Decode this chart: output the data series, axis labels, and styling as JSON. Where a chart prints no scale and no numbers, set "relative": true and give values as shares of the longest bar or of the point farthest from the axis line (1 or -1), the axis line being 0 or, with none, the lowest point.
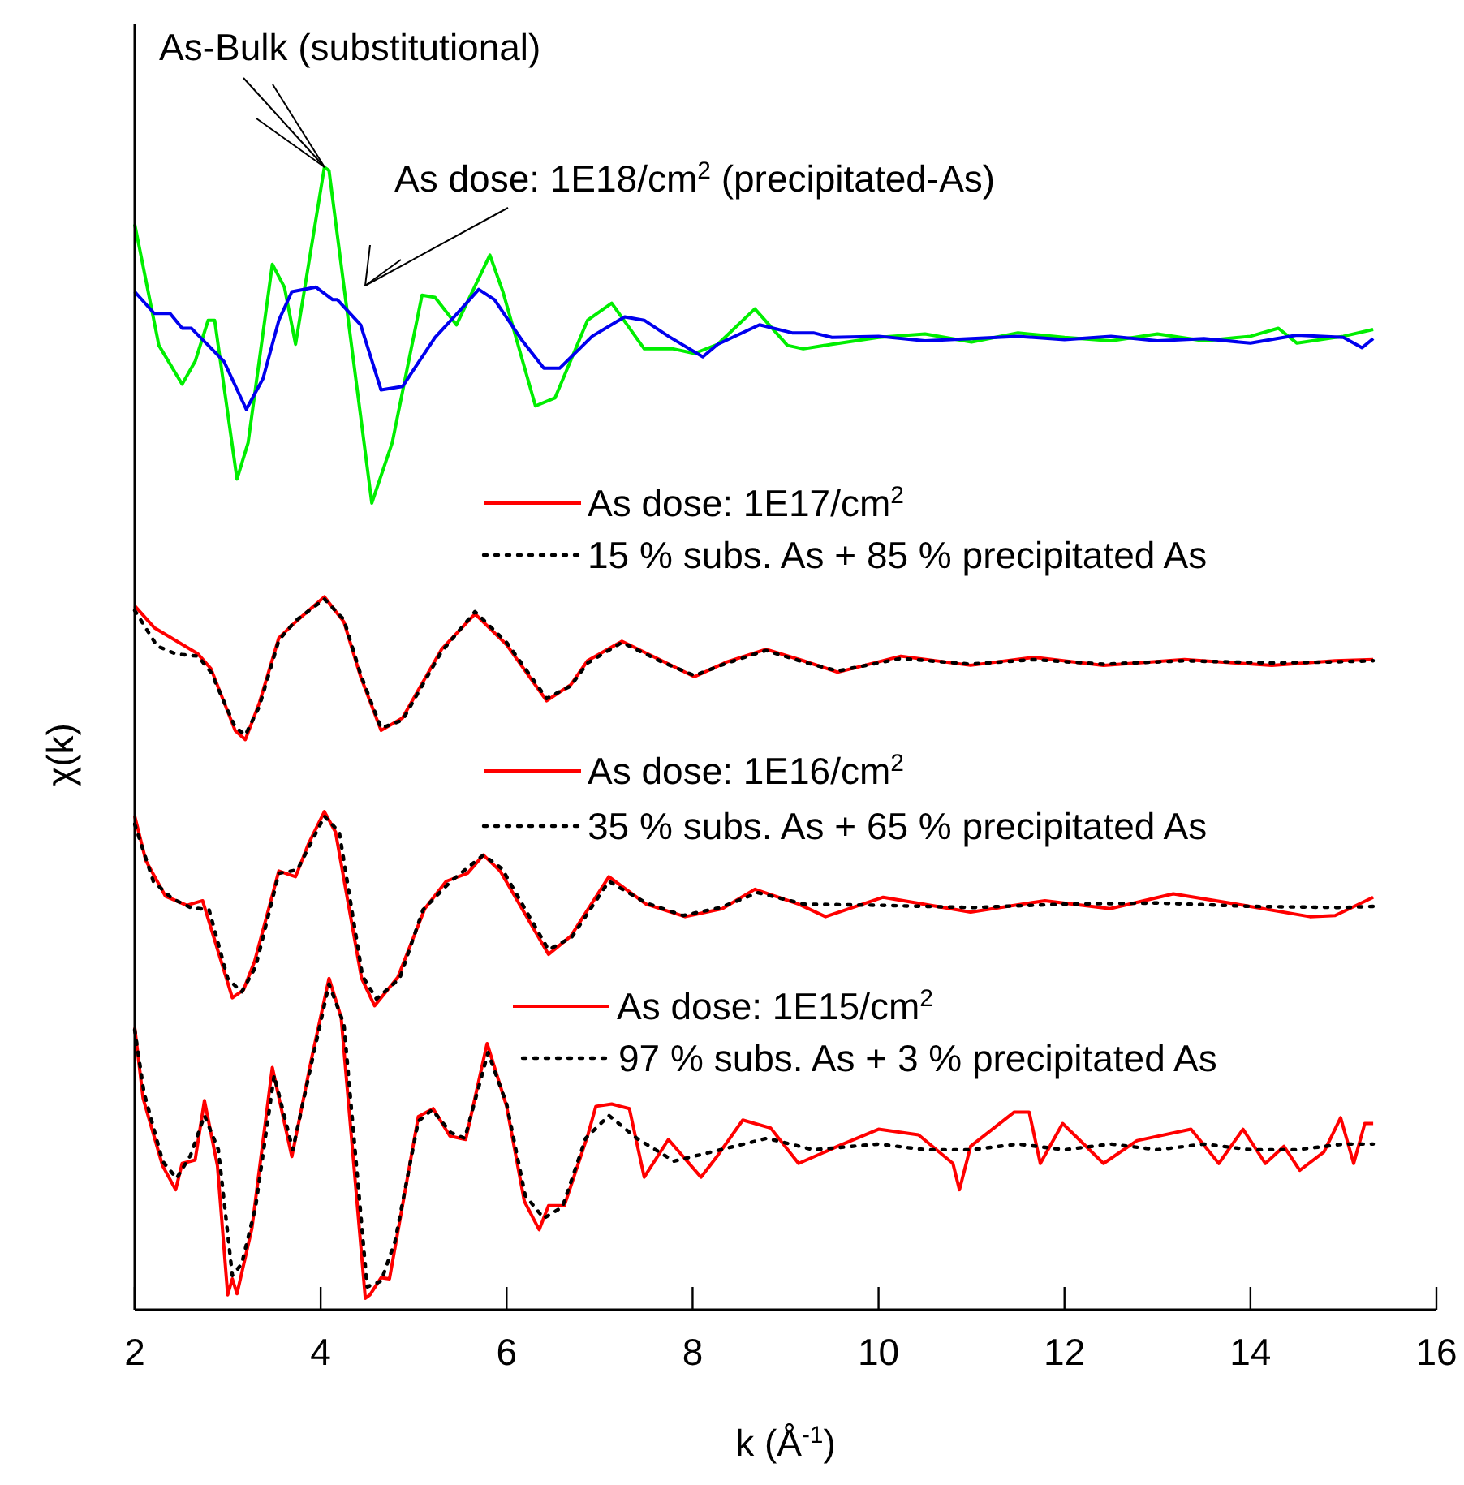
{
  "chart_data": {
    "type": "line",
    "relative": true,
    "xlabel": "k (Å$^{-1}$)",
    "ylabel": "χ(k)",
    "xlim": [
      2,
      16
    ],
    "xticks": [
      2,
      4,
      6,
      8,
      10,
      12,
      14,
      16
    ],
    "legend": "right",
    "grid": false,
    "marker": "none",
    "series": [
      {
        "name": "As-Bulk (substitutional)",
        "color": "#00ee00",
        "line_style": "solid",
        "x": [
          2.0,
          2.26,
          2.51,
          2.65,
          2.79,
          2.86,
          3.1,
          3.22,
          3.48,
          3.61,
          3.73,
          4.04,
          4.09,
          4.55,
          4.77,
          5.09,
          5.23,
          5.46,
          5.82,
          5.96,
          6.31,
          6.52,
          6.87,
          7.13,
          7.48,
          7.79,
          8.02,
          8.27,
          8.67,
          9.02,
          9.19,
          9.5,
          10,
          10.5,
          11,
          11.5,
          12,
          12.5,
          13,
          13.5,
          14,
          14.3,
          14.5,
          15,
          15.32
        ],
        "values": [
          0.95,
          0.844,
          0.81,
          0.83,
          0.866,
          0.866,
          0.727,
          0.759,
          0.915,
          0.895,
          0.845,
          1.0,
          0.997,
          0.706,
          0.759,
          0.888,
          0.886,
          0.862,
          0.923,
          0.891,
          0.791,
          0.798,
          0.866,
          0.881,
          0.841,
          0.841,
          0.837,
          0.845,
          0.876,
          0.844,
          0.841,
          0.845,
          0.851,
          0.854,
          0.847,
          0.855,
          0.851,
          0.848,
          0.854,
          0.848,
          0.852,
          0.859,
          0.846,
          0.852,
          0.858
        ]
      },
      {
        "name": "As dose: 1E18/cm$^{2}$ (precipitated-As)",
        "color": "#0000ee",
        "line_style": "solid",
        "x": [
          2.0,
          2.21,
          2.38,
          2.51,
          2.61,
          2.96,
          3.2,
          3.38,
          3.55,
          3.69,
          3.95,
          4.13,
          4.18,
          4.43,
          4.65,
          4.88,
          5.23,
          5.47,
          5.7,
          5.87,
          6.17,
          6.4,
          6.57,
          6.92,
          7.27,
          7.48,
          7.74,
          8.11,
          8.27,
          8.72,
          9.07,
          9.3,
          9.5,
          10,
          10.5,
          11,
          11.5,
          12,
          12.5,
          13,
          13.5,
          14,
          14.5,
          15,
          15.2,
          15.32
        ],
        "values": [
          0.891,
          0.872,
          0.872,
          0.859,
          0.859,
          0.83,
          0.788,
          0.815,
          0.866,
          0.891,
          0.895,
          0.884,
          0.884,
          0.862,
          0.805,
          0.808,
          0.851,
          0.872,
          0.893,
          0.884,
          0.848,
          0.824,
          0.824,
          0.852,
          0.869,
          0.866,
          0.852,
          0.834,
          0.845,
          0.862,
          0.855,
          0.855,
          0.851,
          0.852,
          0.848,
          0.85,
          0.852,
          0.849,
          0.852,
          0.848,
          0.85,
          0.846,
          0.853,
          0.851,
          0.842,
          0.85
        ]
      },
      {
        "name": "As dose: 1E17/cm$^{2}$",
        "color": "#ff0000",
        "line_style": "solid",
        "x": [
          2,
          2.21,
          2.68,
          2.82,
          3.08,
          3.19,
          3.34,
          3.55,
          3.73,
          4.04,
          4.25,
          4.43,
          4.65,
          4.88,
          5.3,
          5.66,
          6.0,
          6.43,
          6.69,
          6.87,
          7.24,
          7.67,
          8.02,
          8.37,
          8.79,
          9.19,
          9.56,
          10.24,
          10.99,
          11.67,
          12.42,
          13.29,
          14.23,
          14.91,
          15.32
        ],
        "values": [
          0.616,
          0.597,
          0.574,
          0.561,
          0.507,
          0.499,
          0.531,
          0.588,
          0.602,
          0.624,
          0.602,
          0.554,
          0.507,
          0.518,
          0.578,
          0.609,
          0.582,
          0.533,
          0.547,
          0.568,
          0.585,
          0.568,
          0.554,
          0.567,
          0.578,
          0.568,
          0.558,
          0.572,
          0.564,
          0.571,
          0.564,
          0.569,
          0.564,
          0.568,
          0.569
        ]
      },
      {
        "name": "15 % subs. As + 85 % precipitated As",
        "color": "#000000",
        "line_style": "dotted",
        "x": [
          2,
          2.24,
          2.44,
          2.68,
          2.82,
          3.08,
          3.19,
          3.34,
          3.55,
          3.73,
          4.04,
          4.25,
          4.43,
          4.65,
          4.88,
          5.3,
          5.66,
          6.0,
          6.43,
          6.69,
          6.87,
          7.24,
          7.67,
          8.02,
          8.37,
          8.79,
          9.19,
          9.56,
          10.24,
          10.99,
          11.67,
          12.42,
          13.29,
          14.23,
          14.91,
          15.32
        ],
        "values": [
          0.612,
          0.581,
          0.574,
          0.572,
          0.558,
          0.51,
          0.503,
          0.528,
          0.586,
          0.603,
          0.622,
          0.604,
          0.556,
          0.509,
          0.516,
          0.576,
          0.611,
          0.584,
          0.535,
          0.546,
          0.566,
          0.584,
          0.567,
          0.555,
          0.566,
          0.577,
          0.567,
          0.559,
          0.57,
          0.565,
          0.569,
          0.565,
          0.568,
          0.566,
          0.567,
          0.568
        ]
      },
      {
        "name": "As dose: 1E16/cm$^{2}$",
        "color": "#ff0000",
        "line_style": "solid",
        "x": [
          2,
          2.12,
          2.33,
          2.56,
          2.73,
          3.05,
          3.17,
          3.29,
          3.55,
          3.73,
          3.87,
          4.04,
          4.16,
          4.44,
          4.58,
          4.83,
          5.12,
          5.35,
          5.58,
          5.75,
          5.93,
          6.45,
          6.69,
          7.1,
          7.5,
          7.92,
          8.32,
          8.67,
          9.14,
          9.43,
          10.05,
          10.99,
          11.79,
          12.49,
          13.17,
          13.92,
          14.64,
          14.91,
          15.32
        ],
        "values": [
          0.432,
          0.393,
          0.362,
          0.354,
          0.358,
          0.273,
          0.28,
          0.305,
          0.384,
          0.379,
          0.408,
          0.436,
          0.418,
          0.29,
          0.266,
          0.291,
          0.351,
          0.375,
          0.382,
          0.398,
          0.384,
          0.311,
          0.327,
          0.379,
          0.355,
          0.344,
          0.351,
          0.368,
          0.355,
          0.344,
          0.361,
          0.348,
          0.358,
          0.351,
          0.364,
          0.354,
          0.344,
          0.345,
          0.361
        ]
      },
      {
        "name": "35 % subs. As + 65 % precipitated As",
        "color": "#000000",
        "line_style": "dotted",
        "x": [
          2,
          2.2,
          2.4,
          2.6,
          2.8,
          3.0,
          3.15,
          3.3,
          3.55,
          3.75,
          4.04,
          4.2,
          4.45,
          4.6,
          4.85,
          5.1,
          5.4,
          5.75,
          5.95,
          6.45,
          6.7,
          7.1,
          7.5,
          7.9,
          8.3,
          8.7,
          9.2,
          10,
          11,
          12,
          13,
          14,
          15,
          15.32
        ],
        "values": [
          0.425,
          0.375,
          0.36,
          0.352,
          0.35,
          0.29,
          0.278,
          0.3,
          0.382,
          0.385,
          0.432,
          0.418,
          0.292,
          0.272,
          0.29,
          0.35,
          0.375,
          0.398,
          0.386,
          0.315,
          0.326,
          0.375,
          0.356,
          0.345,
          0.352,
          0.365,
          0.355,
          0.354,
          0.352,
          0.355,
          0.356,
          0.353,
          0.352,
          0.353
        ]
      },
      {
        "name": "As dose: 1E15/cm$^{2}$",
        "color": "#ff0000",
        "line_style": "solid",
        "x": [
          2,
          2.09,
          2.3,
          2.44,
          2.51,
          2.65,
          2.75,
          2.89,
          3.0,
          3.05,
          3.1,
          3.26,
          3.48,
          3.69,
          3.9,
          4.09,
          4.22,
          4.48,
          4.53,
          4.65,
          4.74,
          5.05,
          5.21,
          5.39,
          5.56,
          5.79,
          6.0,
          6.19,
          6.35,
          6.45,
          6.62,
          6.87,
          6.96,
          7.13,
          7.32,
          7.48,
          7.74,
          8.09,
          8.27,
          8.54,
          8.84,
          9.14,
          9.56,
          10.0,
          10.43,
          10.8,
          10.87,
          10.99,
          11.46,
          11.62,
          11.74,
          11.98,
          12.42,
          12.78,
          13.36,
          13.66,
          13.92,
          14.16,
          14.36,
          14.53,
          14.79,
          14.97,
          15.11,
          15.23,
          15.32
        ],
        "values": [
          0.247,
          0.185,
          0.126,
          0.105,
          0.128,
          0.131,
          0.183,
          0.126,
          0.013,
          0.027,
          0.014,
          0.071,
          0.212,
          0.134,
          0.219,
          0.29,
          0.256,
          0.01,
          0.013,
          0.028,
          0.027,
          0.169,
          0.176,
          0.152,
          0.149,
          0.233,
          0.178,
          0.095,
          0.07,
          0.091,
          0.091,
          0.152,
          0.178,
          0.18,
          0.176,
          0.116,
          0.149,
          0.116,
          0.135,
          0.166,
          0.159,
          0.128,
          0.143,
          0.158,
          0.153,
          0.128,
          0.105,
          0.143,
          0.173,
          0.173,
          0.128,
          0.163,
          0.128,
          0.148,
          0.158,
          0.128,
          0.158,
          0.128,
          0.143,
          0.122,
          0.138,
          0.168,
          0.128,
          0.163,
          0.163
        ]
      },
      {
        "name": "97 % subs. As + 3 % precipitated As",
        "color": "#000000",
        "line_style": "dotted",
        "x": [
          2,
          2.1,
          2.3,
          2.45,
          2.6,
          2.75,
          2.9,
          3.05,
          3.15,
          3.3,
          3.5,
          3.7,
          3.9,
          4.09,
          4.25,
          4.5,
          4.65,
          4.8,
          5.05,
          5.2,
          5.4,
          5.55,
          5.8,
          6.0,
          6.2,
          6.4,
          6.6,
          6.85,
          7.1,
          7.4,
          7.8,
          8.3,
          8.8,
          9.3,
          10,
          10.5,
          11,
          11.5,
          12,
          12.5,
          13,
          13.5,
          14,
          14.5,
          15,
          15.32
        ],
        "values": [
          0.245,
          0.19,
          0.13,
          0.115,
          0.135,
          0.17,
          0.14,
          0.03,
          0.04,
          0.09,
          0.205,
          0.14,
          0.215,
          0.285,
          0.25,
          0.02,
          0.025,
          0.06,
          0.165,
          0.175,
          0.155,
          0.15,
          0.225,
          0.18,
          0.1,
          0.08,
          0.09,
          0.15,
          0.17,
          0.15,
          0.13,
          0.14,
          0.15,
          0.14,
          0.145,
          0.14,
          0.14,
          0.145,
          0.14,
          0.145,
          0.14,
          0.145,
          0.14,
          0.14,
          0.145,
          0.145
        ]
      }
    ]
  }
}
